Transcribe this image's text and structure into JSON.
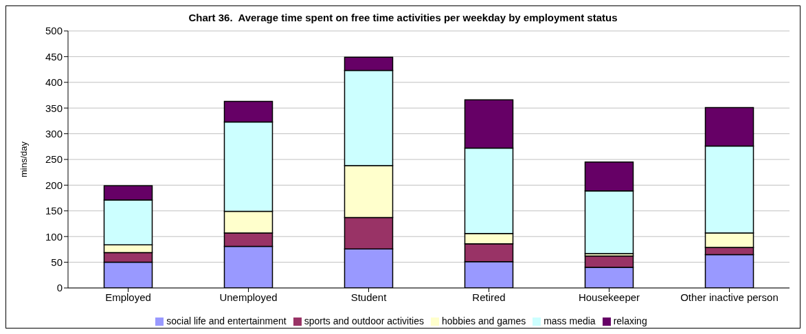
{
  "chart_data": {
    "type": "bar",
    "title": "Chart 36.  Average time spent on free time activities per weekday by employment status",
    "ylabel": "mins/day",
    "categories": [
      "Employed",
      "Unemployed",
      "Student",
      "Retired",
      "Housekeeper",
      "Other inactive person"
    ],
    "stacked": true,
    "ylim": [
      0,
      500
    ],
    "yticks": [
      0,
      50,
      100,
      150,
      200,
      250,
      300,
      350,
      400,
      450,
      500
    ],
    "grid": "y",
    "legend": "bottom",
    "series": [
      {
        "name": "social life and entertainment",
        "color": "#9999ff",
        "values": [
          50,
          81,
          76,
          51,
          40,
          65
        ]
      },
      {
        "name": "sports and outdoor activities",
        "color": "#993366",
        "values": [
          19,
          26,
          61,
          35,
          22,
          14
        ]
      },
      {
        "name": "hobbies and games",
        "color": "#ffffcc",
        "values": [
          15,
          42,
          101,
          20,
          5,
          28
        ]
      },
      {
        "name": "mass media",
        "color": "#ccffff",
        "values": [
          87,
          174,
          185,
          166,
          122,
          169
        ]
      },
      {
        "name": "relaxing",
        "color": "#660066",
        "values": [
          28,
          40,
          26,
          94,
          56,
          75
        ]
      }
    ]
  }
}
